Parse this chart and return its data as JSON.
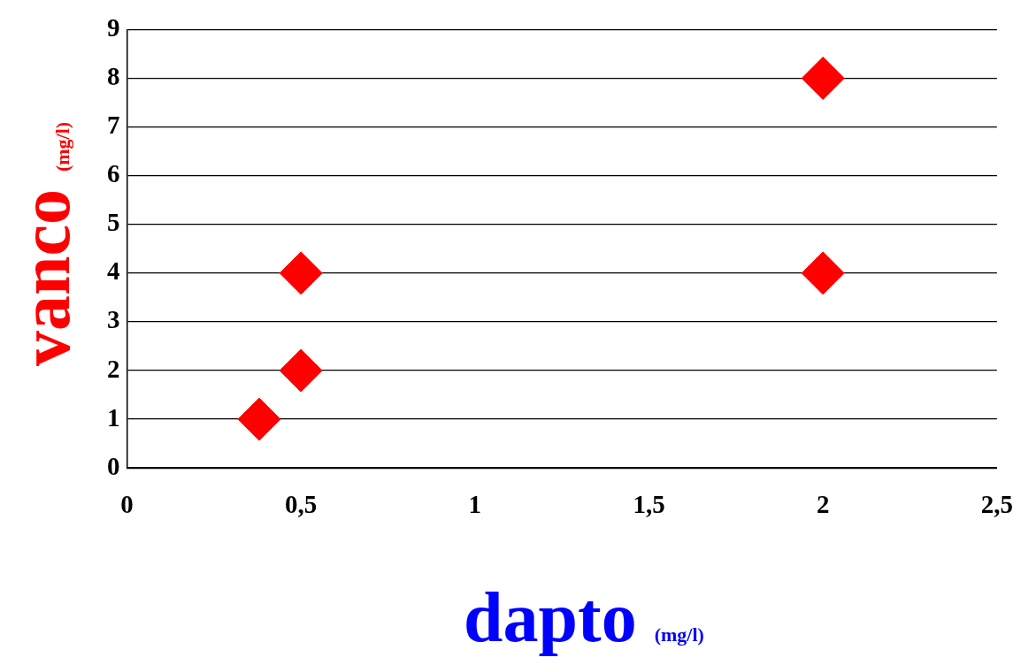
{
  "chart_data": {
    "type": "scatter",
    "xlabel": "dapto (mg/l)",
    "ylabel": "vanco (mg/l)",
    "x": [
      0.38,
      0.5,
      0.5,
      2,
      2
    ],
    "values": [
      1,
      2,
      4,
      4,
      8
    ],
    "color": "#ff0000",
    "marker": "diamond",
    "xlim": [
      0,
      2.5
    ],
    "xticks": [
      0,
      {
        "value": 0.5,
        "label": "0,5"
      },
      1,
      {
        "value": 1.5,
        "label": "1,5"
      },
      2,
      {
        "value": 2.5,
        "label": "2,5"
      }
    ],
    "ylim": [
      0,
      9
    ],
    "yticks": [
      0,
      1,
      2,
      3,
      4,
      5,
      6,
      7,
      8,
      9
    ],
    "grid": "y",
    "legend": false
  }
}
